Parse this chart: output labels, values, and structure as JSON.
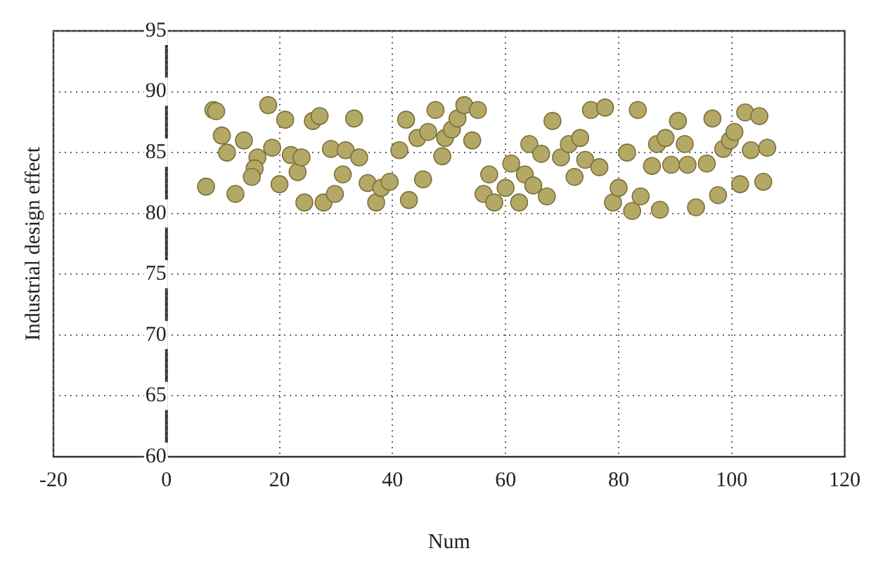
{
  "chart_data": {
    "type": "scatter",
    "xlabel": "Num",
    "ylabel": "Industrial design effect",
    "xlim": [
      -20,
      120
    ],
    "xticks": [
      -20,
      0,
      20,
      40,
      60,
      80,
      100,
      120
    ],
    "ylim": [
      60,
      95
    ],
    "yticks": [
      60,
      65,
      70,
      75,
      80,
      85,
      90,
      95
    ],
    "grid": true,
    "marker": "circle",
    "legend": false,
    "series": [
      {
        "color": "#b3a865",
        "x": [
          7,
          8.3,
          8.8,
          9.8,
          10.7,
          12.2,
          13.7,
          16.1,
          15.6,
          15.1,
          18,
          18.7,
          21,
          20,
          22,
          23.2,
          23.9,
          24.4,
          25.9,
          27.1,
          27.8,
          29.1,
          29.8,
          31.2,
          31.7,
          33.2,
          34.1,
          35.6,
          37.1,
          38,
          39.5,
          42.9,
          45.4,
          41.2,
          42.4,
          44.4,
          46.3,
          47.6,
          48.8,
          49.3,
          50.5,
          51.5,
          52.7,
          55.1,
          54.1,
          56.1,
          57.1,
          58,
          60,
          61,
          62.4,
          63.4,
          64.9,
          67.3,
          64.2,
          66.3,
          68.3,
          69.8,
          71.2,
          72.2,
          73.2,
          74.1,
          75.1,
          76.6,
          77.6,
          79,
          80,
          81.5,
          82.4,
          83.9,
          83.4,
          85.9,
          86.8,
          87.3,
          88.3,
          89.3,
          90.5,
          91.7,
          92.2,
          93.7,
          95.6,
          96.6,
          97.6,
          98.5,
          99.7,
          100.5,
          101.5,
          102.4,
          103.4,
          104.9,
          105.6,
          106.3
        ],
        "values": [
          82.2,
          88.5,
          88.4,
          86.4,
          85,
          81.6,
          86,
          84.6,
          83.7,
          83,
          88.9,
          85.4,
          87.7,
          82.4,
          84.8,
          83.4,
          84.6,
          80.9,
          87.6,
          88,
          80.9,
          85.3,
          81.6,
          83.2,
          85.2,
          87.8,
          84.6,
          82.5,
          80.9,
          82.1,
          82.6,
          81.1,
          82.8,
          85.2,
          87.7,
          86.2,
          86.7,
          88.5,
          84.7,
          86.2,
          86.9,
          87.8,
          88.9,
          88.5,
          86,
          81.6,
          83.2,
          80.9,
          82.1,
          84.1,
          80.9,
          83.2,
          82.3,
          81.4,
          85.7,
          84.9,
          87.6,
          84.6,
          85.7,
          83,
          86.2,
          84.4,
          88.5,
          83.8,
          88.7,
          80.9,
          82.1,
          85,
          80.2,
          81.4,
          88.5,
          83.9,
          85.7,
          80.3,
          86.2,
          84,
          87.6,
          85.7,
          84,
          80.5,
          84.1,
          87.8,
          81.5,
          85.3,
          86,
          86.7,
          82.4,
          88.3,
          85.2,
          88,
          82.6,
          85.4
        ]
      }
    ]
  }
}
